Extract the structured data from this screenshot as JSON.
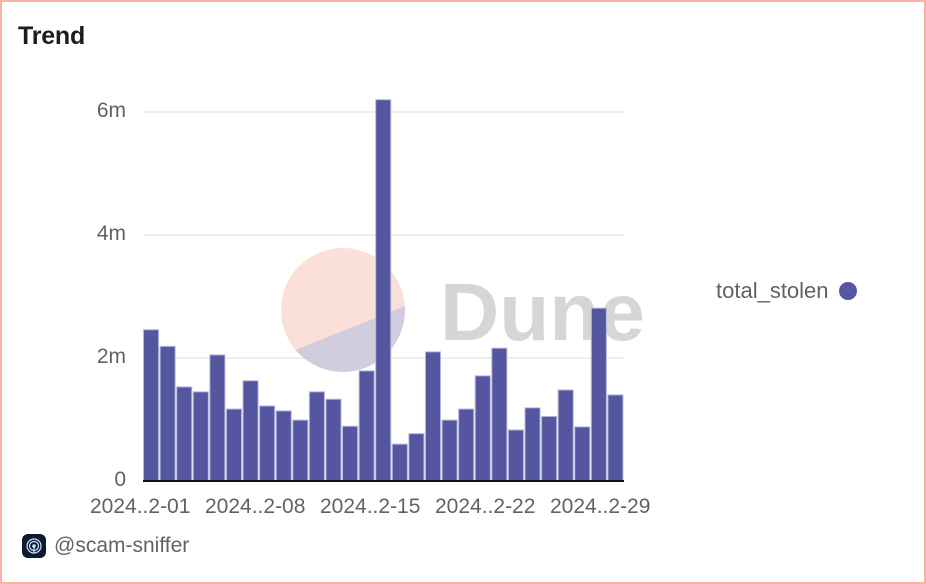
{
  "card": {
    "title": "Trend",
    "author": "@scam-sniffer",
    "author_icon": "scam-sniffer-logo-icon",
    "watermark": "Dune"
  },
  "colors": {
    "bar": "#5457a0",
    "bar_stroke": "#b8b9dc",
    "border": "#f7b3a6",
    "gridline": "#eeeeee",
    "axis": "#111111",
    "text_muted": "#5f6368"
  },
  "legend": {
    "items": [
      {
        "label": "total_stolen",
        "color": "#5457a0"
      }
    ]
  },
  "chart_data": {
    "type": "bar",
    "title": "Trend",
    "xlabel": "",
    "ylabel": "",
    "ylim": [
      0,
      6200000
    ],
    "y_ticks": [
      "0",
      "2m",
      "4m",
      "6m"
    ],
    "y_tick_values": [
      0,
      2000000,
      4000000,
      6000000
    ],
    "x_tick_labels": [
      "2024..2-01",
      "2024..2-08",
      "2024..2-15",
      "2024..2-22",
      "2024..2-29"
    ],
    "grid": true,
    "legend_position": "right",
    "categories": [
      "2024-02-01",
      "2024-02-02",
      "2024-02-03",
      "2024-02-04",
      "2024-02-05",
      "2024-02-06",
      "2024-02-07",
      "2024-02-08",
      "2024-02-09",
      "2024-02-10",
      "2024-02-11",
      "2024-02-12",
      "2024-02-13",
      "2024-02-14",
      "2024-02-15",
      "2024-02-16",
      "2024-02-17",
      "2024-02-18",
      "2024-02-19",
      "2024-02-20",
      "2024-02-21",
      "2024-02-22",
      "2024-02-23",
      "2024-02-24",
      "2024-02-25",
      "2024-02-26",
      "2024-02-27",
      "2024-02-28",
      "2024-02-29"
    ],
    "series": [
      {
        "name": "total_stolen",
        "values": [
          2460000,
          2190000,
          1530000,
          1450000,
          2050000,
          1170000,
          1630000,
          1220000,
          1140000,
          990000,
          1450000,
          1330000,
          890000,
          1790000,
          6200000,
          600000,
          770000,
          2100000,
          990000,
          1170000,
          1710000,
          2160000,
          830000,
          1190000,
          1050000,
          1480000,
          880000,
          2810000,
          1400000
        ]
      }
    ]
  }
}
